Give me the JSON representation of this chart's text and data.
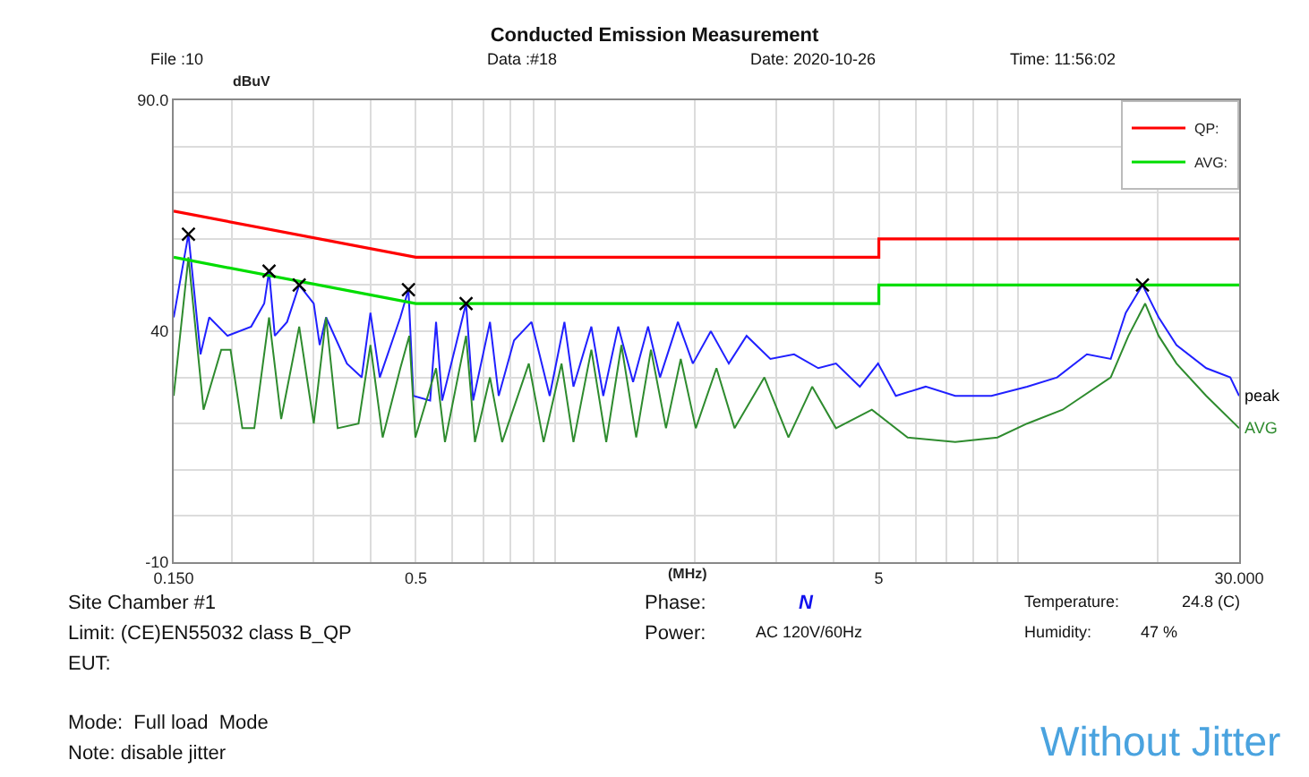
{
  "chart_data": {
    "type": "line",
    "title": "Conducted Emission Measurement",
    "xlabel": "(MHz)",
    "ylabel": "dBuV",
    "log": "x",
    "grid": true,
    "legend": "top right",
    "marker": "none",
    "line_style": "solid",
    "xlim": [
      0.15,
      30
    ],
    "xticks": [
      {
        "value": 0.15,
        "label": "0.150"
      },
      {
        "value": 0.2,
        "label": null
      },
      {
        "value": 0.3,
        "label": null
      },
      {
        "value": 0.4,
        "label": null
      },
      0.5,
      {
        "value": 0.6,
        "label": null
      },
      {
        "value": 0.7,
        "label": null
      },
      {
        "value": 0.8,
        "label": null
      },
      {
        "value": 0.9,
        "label": null
      },
      {
        "value": 1,
        "label": null
      },
      {
        "value": 2,
        "label": null
      },
      {
        "value": 3,
        "label": null
      },
      {
        "value": 4,
        "label": null
      },
      5,
      {
        "value": 6,
        "label": null
      },
      {
        "value": 7,
        "label": null
      },
      {
        "value": 8,
        "label": null
      },
      {
        "value": 9,
        "label": null
      },
      {
        "value": 10,
        "label": null
      },
      {
        "value": 20,
        "label": null
      },
      {
        "value": 30,
        "label": "30.000"
      }
    ],
    "ylim": [
      -10,
      90
    ],
    "yticks": [
      -10,
      {
        "value": 0,
        "label": null
      },
      {
        "value": 10,
        "label": null
      },
      {
        "value": 20,
        "label": null
      },
      {
        "value": 30,
        "label": null
      },
      40,
      {
        "value": 50,
        "label": null
      },
      {
        "value": 60,
        "label": null
      },
      {
        "value": 70,
        "label": null
      },
      {
        "value": 80,
        "label": null
      },
      {
        "value": 90,
        "label": "90.0"
      }
    ],
    "series": [
      {
        "name": "peak",
        "color": "#2020ff",
        "x": [
          0.15,
          0.1614,
          0.1714,
          0.179,
          0.196,
          0.2205,
          0.2353,
          0.241,
          0.248,
          0.2636,
          0.28,
          0.301,
          0.31,
          0.32,
          0.355,
          0.382,
          0.399,
          0.418,
          0.463,
          0.482,
          0.494,
          0.537,
          0.553,
          0.57,
          0.642,
          0.665,
          0.723,
          0.755,
          0.815,
          0.889,
          0.973,
          1.047,
          1.095,
          1.197,
          1.27,
          1.368,
          1.473,
          1.587,
          1.684,
          1.841,
          1.983,
          2.168,
          2.371,
          2.59,
          2.915,
          3.28,
          3.7,
          4.04,
          4.55,
          4.98,
          5.44,
          6.31,
          7.31,
          8.75,
          10.45,
          12.13,
          14.07,
          15.84,
          17.07,
          18.55,
          20.1,
          21.97,
          25.47,
          28.7,
          30
        ],
        "values": [
          43,
          61,
          35,
          43,
          39,
          41,
          46,
          53,
          39,
          42,
          50,
          46,
          37,
          43,
          33,
          30,
          44,
          30,
          43,
          49,
          26,
          25,
          42,
          25,
          46,
          25,
          42,
          26,
          38,
          42,
          26,
          42,
          28,
          41,
          26,
          41,
          29,
          41,
          30,
          42,
          33,
          40,
          33,
          39,
          34,
          35,
          32,
          33,
          28,
          33,
          26,
          28,
          26,
          26,
          28,
          30,
          35,
          34,
          44,
          50,
          43,
          37,
          32,
          30,
          26
        ]
      },
      {
        "name": "AVG",
        "color": "#2e8b2e",
        "x": [
          0.15,
          0.1614,
          0.174,
          0.19,
          0.199,
          0.211,
          0.224,
          0.241,
          0.256,
          0.28,
          0.301,
          0.32,
          0.339,
          0.376,
          0.399,
          0.424,
          0.463,
          0.484,
          0.499,
          0.553,
          0.578,
          0.642,
          0.671,
          0.723,
          0.768,
          0.877,
          0.944,
          1.032,
          1.095,
          1.197,
          1.289,
          1.39,
          1.496,
          1.61,
          1.735,
          1.867,
          2.012,
          2.23,
          2.44,
          2.83,
          3.19,
          3.59,
          4.04,
          4.83,
          5.77,
          7.31,
          9.02,
          10.45,
          12.47,
          15.84,
          17.3,
          18.8,
          20.1,
          21.97,
          25.47,
          30
        ],
        "values": [
          26,
          56,
          23,
          36,
          36,
          19,
          19,
          43,
          21,
          41,
          20,
          43,
          19,
          20,
          37,
          17,
          32,
          39,
          17,
          32,
          16,
          39,
          16,
          30,
          16,
          33,
          16,
          33,
          16,
          36,
          16,
          37,
          17,
          36,
          19,
          34,
          19,
          32,
          19,
          30,
          17,
          28,
          19,
          23,
          17,
          16,
          17,
          20,
          23,
          30,
          39,
          46,
          39,
          33,
          26,
          19
        ]
      },
      {
        "name": "QP:",
        "color": "#ff0000",
        "x": [
          0.15,
          0.5,
          5,
          5,
          30
        ],
        "values": [
          66,
          56,
          56,
          60,
          60
        ]
      },
      {
        "name": "AVG:",
        "color": "#00dd00",
        "x": [
          0.15,
          0.5,
          5,
          5,
          30
        ],
        "values": [
          56,
          46,
          46,
          50,
          50
        ]
      },
      {
        "type": "scatter",
        "marker": "cross",
        "color": "#000000",
        "x": [
          0.1614,
          0.241,
          0.28,
          0.482,
          0.642,
          18.55
        ],
        "values": [
          61,
          53,
          50,
          49,
          46,
          50
        ]
      }
    ],
    "annotations": [
      "File :10",
      "Data :#18",
      "Date: 2020-10-26",
      "Time: 11:56:02",
      "Site Chamber #1",
      "Limit: (CE)EN55032 class B_QP",
      "EUT:",
      "Mode:  Full load  Mode",
      "Note: disable jitter",
      "Phase:",
      "N",
      "Power:",
      "AC 120V/60Hz",
      "Temperature:",
      "24.8 (C)",
      "Humidity:",
      "47 %",
      "Without Jitter"
    ]
  }
}
